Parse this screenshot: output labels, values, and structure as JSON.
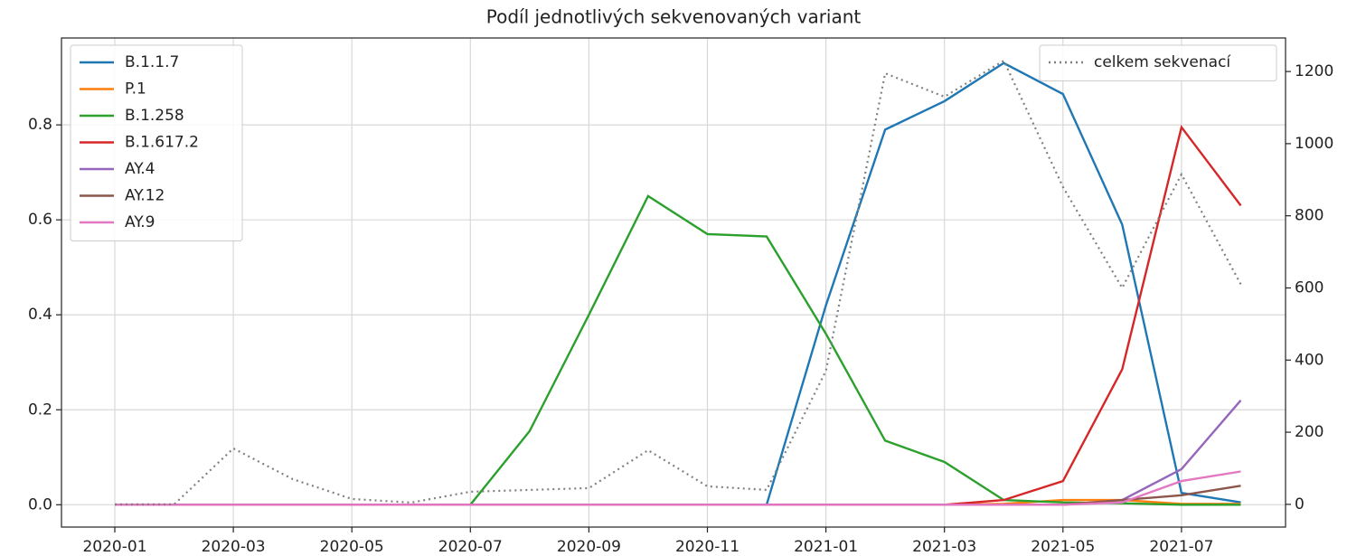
{
  "chart_data": {
    "type": "line",
    "title": "Podíl jednotlivých sekvenovaných variant",
    "x": [
      "2020-01",
      "2020-02",
      "2020-03",
      "2020-04",
      "2020-05",
      "2020-06",
      "2020-07",
      "2020-08",
      "2020-09",
      "2020-10",
      "2020-11",
      "2020-12",
      "2021-01",
      "2021-02",
      "2021-03",
      "2021-04",
      "2021-05",
      "2021-06",
      "2021-07",
      "2021-08"
    ],
    "xticks": [
      "2020-01",
      "2020-03",
      "2020-05",
      "2020-07",
      "2020-09",
      "2020-11",
      "2021-01",
      "2021-03",
      "2021-05",
      "2021-07"
    ],
    "ylim": [
      -0.047,
      0.983
    ],
    "yticks": [
      {
        "value": 0,
        "label": "0.0"
      },
      0.2,
      0.4,
      0.6,
      0.8
    ],
    "y2lim": [
      -63,
      1293
    ],
    "y2ticks": [
      0,
      200,
      400,
      600,
      800,
      1000,
      1200
    ],
    "grid": true,
    "legend": "upper left",
    "legend2": "upper right",
    "series": [
      {
        "name": "B.1.1.7",
        "color": "#1f77b4",
        "values": [
          0,
          0,
          0,
          0,
          0,
          0,
          0,
          0,
          0,
          0,
          0,
          0,
          0.42,
          0.79,
          0.85,
          0.93,
          0.865,
          0.59,
          0.025,
          0.005
        ]
      },
      {
        "name": "P.1",
        "color": "#ff7f0e",
        "values": [
          0,
          0,
          0,
          0,
          0,
          0,
          0,
          0,
          0,
          0,
          0,
          0,
          0,
          0,
          0,
          0.002,
          0.01,
          0.01,
          0.002,
          0.002
        ]
      },
      {
        "name": "B.1.258",
        "color": "#2ca02c",
        "values": [
          0,
          0,
          0,
          0,
          0,
          0,
          0,
          0.155,
          0.4,
          0.65,
          0.57,
          0.565,
          0.36,
          0.135,
          0.09,
          0.01,
          0.005,
          0.003,
          0,
          0
        ]
      },
      {
        "name": "B.1.617.2",
        "color": "#d62728",
        "values": [
          0,
          0,
          0,
          0,
          0,
          0,
          0,
          0,
          0,
          0,
          0,
          0,
          0,
          0,
          0,
          0.01,
          0.05,
          0.285,
          0.795,
          0.63
        ]
      },
      {
        "name": "AY.4",
        "color": "#9467bd",
        "values": [
          0,
          0,
          0,
          0,
          0,
          0,
          0,
          0,
          0,
          0,
          0,
          0,
          0,
          0,
          0,
          0,
          0,
          0.01,
          0.075,
          0.22
        ]
      },
      {
        "name": "AY.12",
        "color": "#8c564b",
        "values": [
          0,
          0,
          0,
          0,
          0,
          0,
          0,
          0,
          0,
          0,
          0,
          0,
          0,
          0,
          0,
          0,
          0,
          0.01,
          0.02,
          0.04
        ]
      },
      {
        "name": "AY.9",
        "color": "#e377c2",
        "values": [
          0,
          0,
          0,
          0,
          0,
          0,
          0,
          0,
          0,
          0,
          0,
          0,
          0,
          0,
          0,
          0,
          0,
          0.005,
          0.05,
          0.07
        ]
      },
      {
        "name": "celkem sekvenací",
        "color": "#808080",
        "dashed": true,
        "axis": "y2",
        "values": [
          0,
          0,
          155,
          70,
          15,
          5,
          35,
          40,
          45,
          150,
          50,
          40,
          370,
          1195,
          1130,
          1230,
          880,
          600,
          915,
          610
        ]
      }
    ]
  }
}
